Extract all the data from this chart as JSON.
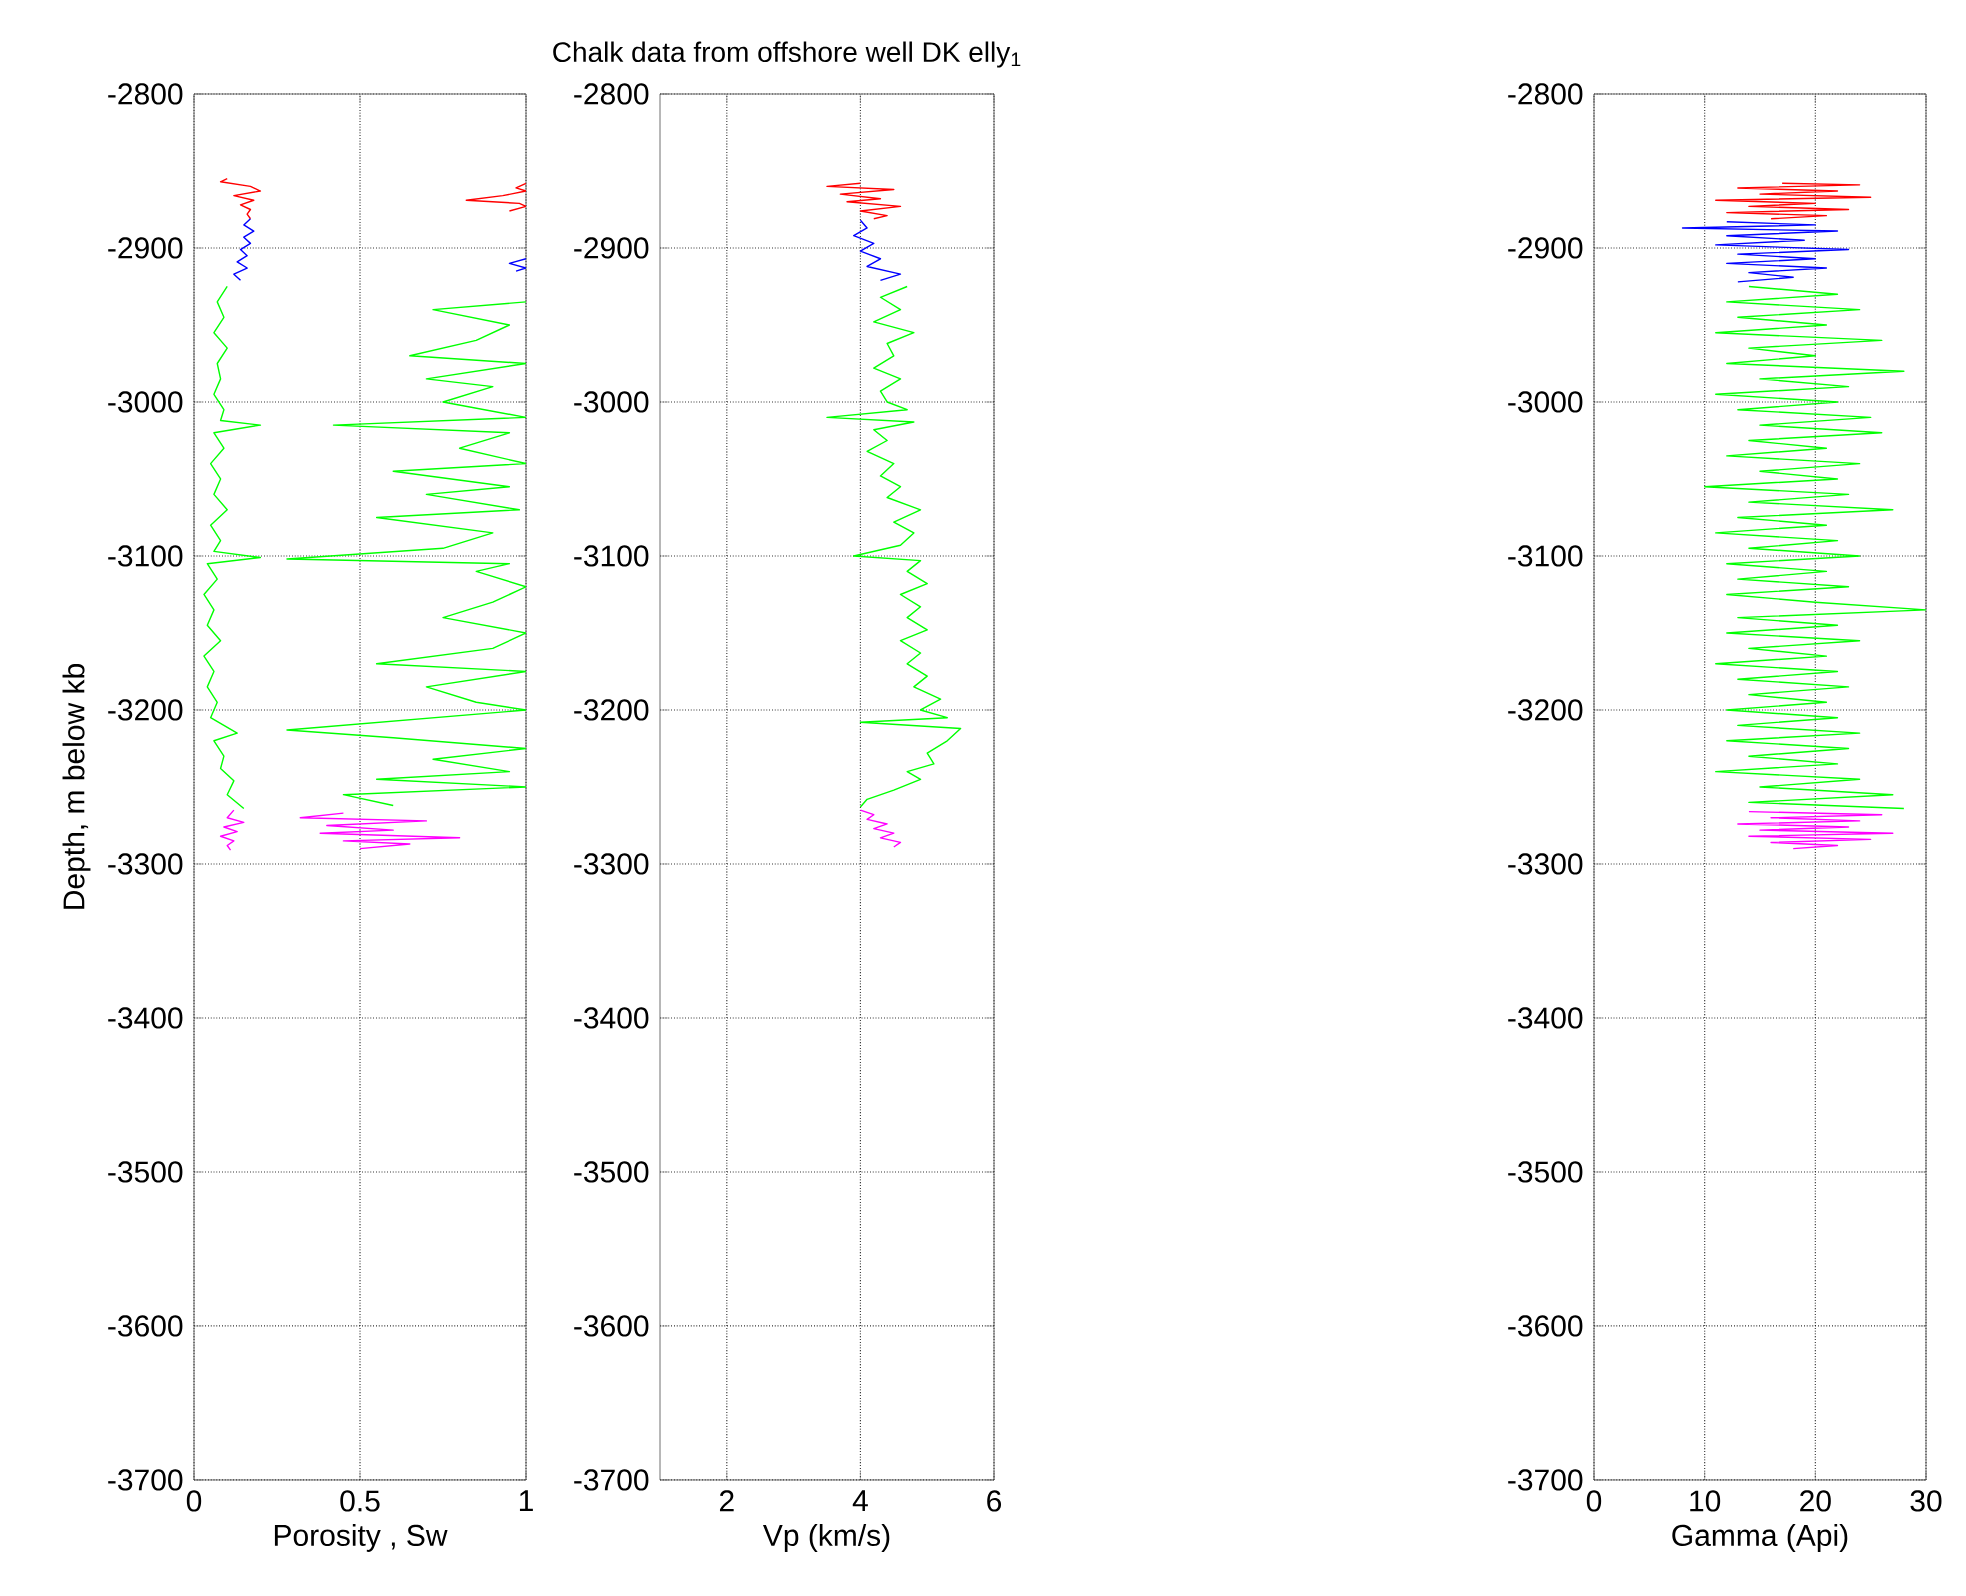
{
  "chart_data": [
    {
      "type": "line",
      "xlabel": "Porosity , Sw",
      "ylabel": "Depth, m below kb",
      "xlim": [
        0,
        1
      ],
      "xticks": [
        0,
        0.5,
        1
      ],
      "ylim": [
        -3700,
        -2800
      ],
      "yticks": [
        -3700,
        -3600,
        -3500,
        -3400,
        -3300,
        -3200,
        -3100,
        -3000,
        -2900,
        -2800
      ],
      "grid": true,
      "series": [
        {
          "color": "#ff0000",
          "x": [
            0.1,
            0.08,
            0.17,
            0.2,
            0.12,
            0.18,
            0.14,
            0.17,
            0.16,
            0.17
          ],
          "values": [
            -2855,
            -2857,
            -2860,
            -2863,
            -2866,
            -2869,
            -2872,
            -2875,
            -2878,
            -2881
          ]
        },
        {
          "color": "#0000ff",
          "x": [
            0.17,
            0.15,
            0.18,
            0.15,
            0.17,
            0.14,
            0.16,
            0.13,
            0.16,
            0.12,
            0.14
          ],
          "values": [
            -2881,
            -2885,
            -2889,
            -2893,
            -2897,
            -2901,
            -2905,
            -2909,
            -2913,
            -2917,
            -2921
          ]
        },
        {
          "color": "#00ff00",
          "x": [
            0.1,
            0.07,
            0.09,
            0.06,
            0.1,
            0.07,
            0.08,
            0.06,
            0.09,
            0.08,
            0.2,
            0.06,
            0.09,
            0.05,
            0.08,
            0.06,
            0.1,
            0.05,
            0.08,
            0.06,
            0.2,
            0.04,
            0.07,
            0.03,
            0.06,
            0.04,
            0.08,
            0.03,
            0.06,
            0.04,
            0.07,
            0.05,
            0.13,
            0.06,
            0.09,
            0.08,
            0.12,
            0.1,
            0.15
          ],
          "values": [
            -2925,
            -2935,
            -2945,
            -2955,
            -2965,
            -2975,
            -2985,
            -2995,
            -3005,
            -3012,
            -3015,
            -3020,
            -3030,
            -3040,
            -3050,
            -3060,
            -3070,
            -3080,
            -3090,
            -3097,
            -3101,
            -3105,
            -3115,
            -3125,
            -3135,
            -3145,
            -3155,
            -3165,
            -3175,
            -3185,
            -3195,
            -3205,
            -3215,
            -3220,
            -3230,
            -3238,
            -3246,
            -3255,
            -3264
          ]
        },
        {
          "color": "#ff00ff",
          "x": [
            0.12,
            0.1,
            0.15,
            0.09,
            0.13,
            0.08,
            0.12,
            0.1,
            0.11
          ],
          "values": [
            -3265,
            -3270,
            -3273,
            -3276,
            -3279,
            -3282,
            -3285,
            -3288,
            -3291
          ]
        },
        {
          "color": "#ff0000",
          "x": [
            1.0,
            0.97,
            1.0,
            0.93,
            0.82,
            0.98,
            1.0,
            0.95
          ],
          "values": [
            -2858,
            -2861,
            -2863,
            -2866,
            -2869,
            -2871,
            -2873,
            -2876
          ]
        },
        {
          "color": "#0000ff",
          "x": [
            1.0,
            0.95,
            1.0,
            0.97
          ],
          "values": [
            -2907,
            -2910,
            -2913,
            -2915
          ]
        },
        {
          "color": "#00ff00",
          "x": [
            1.0,
            0.72,
            0.95,
            0.85,
            0.65,
            1.0,
            0.7,
            0.9,
            0.75,
            1.0,
            0.42,
            0.95,
            0.8,
            1.0,
            0.6,
            0.95,
            0.7,
            0.98,
            0.55,
            0.9,
            0.75,
            0.28,
            0.95,
            0.85,
            1.0,
            0.9,
            0.75,
            1.0,
            0.9,
            0.55,
            1.0,
            0.7,
            0.85,
            1.0,
            0.28,
            0.6,
            1.0,
            0.72,
            0.95,
            0.55,
            1.0,
            0.45,
            0.6
          ],
          "values": [
            -2935,
            -2940,
            -2950,
            -2960,
            -2970,
            -2975,
            -2985,
            -2990,
            -3000,
            -3010,
            -3015,
            -3020,
            -3030,
            -3040,
            -3045,
            -3055,
            -3060,
            -3070,
            -3075,
            -3085,
            -3095,
            -3102,
            -3105,
            -3110,
            -3120,
            -3130,
            -3140,
            -3150,
            -3160,
            -3170,
            -3175,
            -3185,
            -3195,
            -3200,
            -3213,
            -3218,
            -3225,
            -3232,
            -3240,
            -3245,
            -3250,
            -3255,
            -3262
          ]
        },
        {
          "color": "#ff00ff",
          "x": [
            0.45,
            0.32,
            0.7,
            0.4,
            0.6,
            0.38,
            0.8,
            0.45,
            0.65,
            0.5
          ],
          "values": [
            -3267,
            -3270,
            -3272,
            -3275,
            -3278,
            -3280,
            -3283,
            -3285,
            -3287,
            -3290
          ]
        }
      ]
    },
    {
      "type": "line",
      "title": "Chalk data from offshore well DK elly$_{1}$",
      "xlabel": "Vp (km/s)",
      "xlim": [
        1,
        6
      ],
      "xticks": [
        2,
        4,
        6
      ],
      "ylim": [
        -3700,
        -2800
      ],
      "yticks": [
        -3700,
        -3600,
        -3500,
        -3400,
        -3300,
        -3200,
        -3100,
        -3000,
        -2900,
        -2800
      ],
      "grid": true,
      "series": [
        {
          "color": "#ff0000",
          "x": [
            4.0,
            3.5,
            4.5,
            3.7,
            4.3,
            3.8,
            4.6,
            4.0,
            4.4,
            4.2
          ],
          "values": [
            -2858,
            -2860,
            -2862,
            -2865,
            -2868,
            -2870,
            -2873,
            -2876,
            -2879,
            -2881
          ]
        },
        {
          "color": "#0000ff",
          "x": [
            4.0,
            4.1,
            3.9,
            4.2,
            4.0,
            4.3,
            4.1,
            4.6,
            4.3
          ],
          "values": [
            -2882,
            -2887,
            -2892,
            -2897,
            -2902,
            -2907,
            -2912,
            -2917,
            -2921
          ]
        },
        {
          "color": "#00ff00",
          "x": [
            4.7,
            4.3,
            4.6,
            4.2,
            4.8,
            4.4,
            4.5,
            4.2,
            4.6,
            4.3,
            4.4,
            4.7,
            3.5,
            4.8,
            4.2,
            4.4,
            4.1,
            4.5,
            4.3,
            4.6,
            4.4,
            4.9,
            4.5,
            4.8,
            4.6,
            3.9,
            4.9,
            4.7,
            5.0,
            4.6,
            4.9,
            4.7,
            5.0,
            4.6,
            4.9,
            4.7,
            5.0,
            4.8,
            5.2,
            4.9,
            5.3,
            4.0,
            5.5,
            5.3,
            5.0,
            5.1,
            4.7,
            4.9,
            4.5,
            4.1,
            4.0
          ],
          "values": [
            -2925,
            -2932,
            -2940,
            -2948,
            -2955,
            -2962,
            -2970,
            -2978,
            -2985,
            -2993,
            -3000,
            -3005,
            -3010,
            -3013,
            -3018,
            -3025,
            -3032,
            -3040,
            -3048,
            -3055,
            -3062,
            -3070,
            -3078,
            -3085,
            -3093,
            -3100,
            -3103,
            -3110,
            -3118,
            -3125,
            -3133,
            -3140,
            -3148,
            -3155,
            -3163,
            -3170,
            -3178,
            -3185,
            -3193,
            -3200,
            -3205,
            -3208,
            -3212,
            -3220,
            -3228,
            -3235,
            -3240,
            -3245,
            -3252,
            -3258,
            -3263
          ]
        },
        {
          "color": "#ff00ff",
          "x": [
            4.0,
            4.2,
            4.1,
            4.4,
            4.2,
            4.5,
            4.3,
            4.6,
            4.5
          ],
          "values": [
            -3265,
            -3268,
            -3271,
            -3274,
            -3277,
            -3280,
            -3283,
            -3286,
            -3289
          ]
        }
      ]
    },
    {
      "type": "line",
      "xlabel": "Gamma (Api)",
      "xlim": [
        0,
        30
      ],
      "xticks": [
        0,
        10,
        20,
        30
      ],
      "ylim": [
        -3700,
        -2800
      ],
      "yticks": [
        -3700,
        -3600,
        -3500,
        -3400,
        -3300,
        -3200,
        -3100,
        -3000,
        -2900,
        -2800
      ],
      "grid": true,
      "series": [
        {
          "color": "#ff0000",
          "x": [
            17,
            24,
            13,
            22,
            15,
            25,
            11,
            20,
            14,
            23,
            12,
            21,
            16
          ],
          "values": [
            -2858,
            -2859,
            -2861,
            -2863,
            -2865,
            -2867,
            -2869,
            -2871,
            -2873,
            -2875,
            -2877,
            -2879,
            -2881
          ]
        },
        {
          "color": "#0000ff",
          "x": [
            12,
            20,
            8,
            22,
            12,
            19,
            11,
            23,
            13,
            20,
            12,
            21,
            14,
            18,
            13
          ],
          "values": [
            -2883,
            -2885,
            -2887,
            -2889,
            -2892,
            -2895,
            -2898,
            -2901,
            -2904,
            -2907,
            -2910,
            -2913,
            -2916,
            -2919,
            -2922
          ]
        },
        {
          "color": "#00ff00",
          "x": [
            14,
            22,
            12,
            24,
            13,
            21,
            11,
            26,
            14,
            20,
            12,
            28,
            15,
            23,
            11,
            22,
            13,
            25,
            15,
            26,
            14,
            21,
            12,
            24,
            15,
            22,
            10,
            23,
            14,
            27,
            13,
            21,
            11,
            22,
            14,
            24,
            12,
            21,
            13,
            23,
            12,
            20,
            30,
            13,
            22,
            12,
            24,
            14,
            21,
            11,
            22,
            13,
            23,
            14,
            21,
            12,
            22,
            13,
            24,
            12,
            23,
            14,
            22,
            11,
            24,
            15,
            27,
            14,
            28
          ],
          "values": [
            -2925,
            -2930,
            -2935,
            -2940,
            -2945,
            -2950,
            -2955,
            -2960,
            -2965,
            -2970,
            -2975,
            -2980,
            -2985,
            -2990,
            -2995,
            -3000,
            -3005,
            -3010,
            -3015,
            -3020,
            -3025,
            -3030,
            -3035,
            -3040,
            -3045,
            -3050,
            -3055,
            -3060,
            -3065,
            -3070,
            -3075,
            -3080,
            -3085,
            -3090,
            -3095,
            -3100,
            -3105,
            -3110,
            -3115,
            -3120,
            -3125,
            -3130,
            -3135,
            -3140,
            -3145,
            -3150,
            -3155,
            -3160,
            -3165,
            -3170,
            -3175,
            -3180,
            -3185,
            -3190,
            -3195,
            -3200,
            -3205,
            -3210,
            -3215,
            -3220,
            -3225,
            -3230,
            -3235,
            -3240,
            -3245,
            -3250,
            -3255,
            -3260,
            -3264
          ]
        },
        {
          "color": "#ff00ff",
          "x": [
            14,
            26,
            16,
            24,
            13,
            23,
            15,
            27,
            14,
            25,
            16,
            22,
            18
          ],
          "values": [
            -3266,
            -3268,
            -3270,
            -3272,
            -3274,
            -3276,
            -3278,
            -3280,
            -3282,
            -3284,
            -3286,
            -3288,
            -3290
          ]
        }
      ]
    }
  ]
}
